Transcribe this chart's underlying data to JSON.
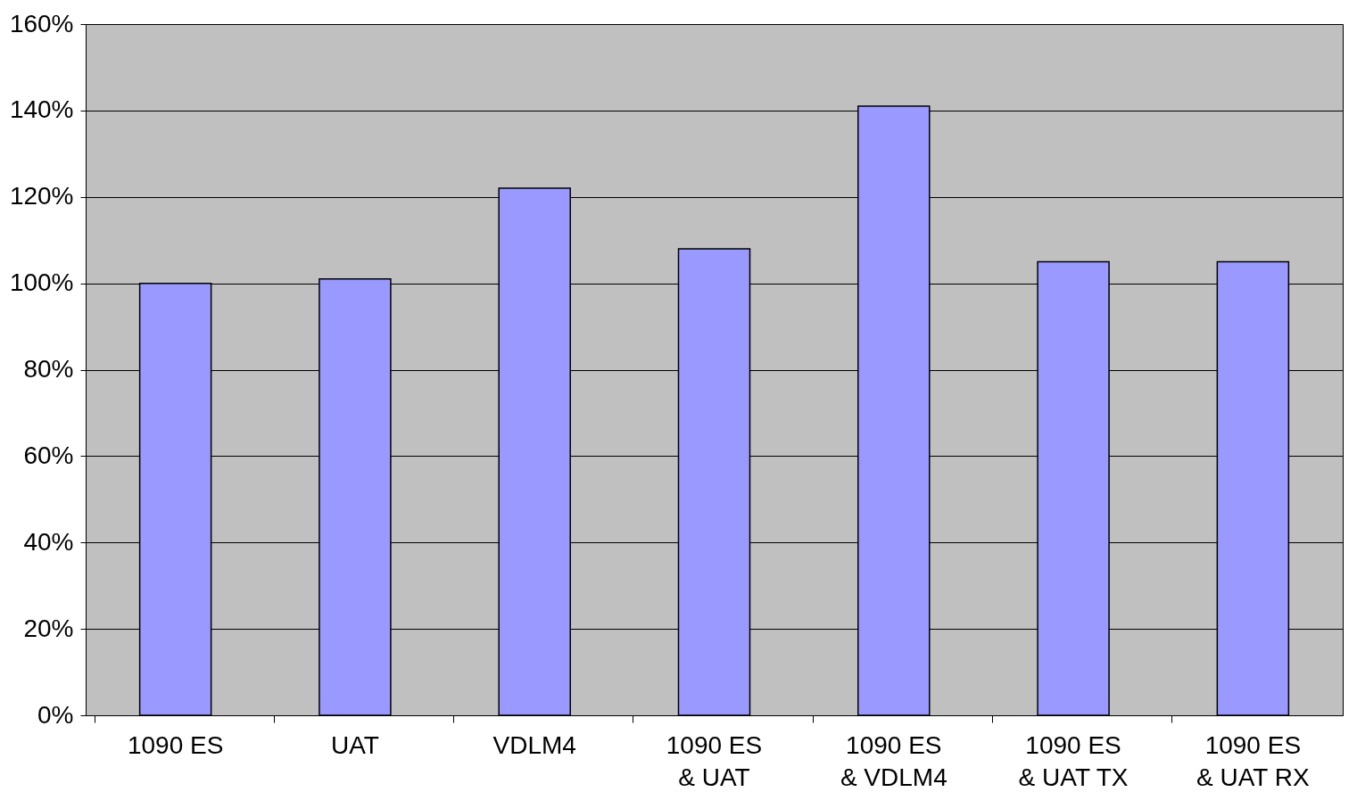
{
  "chart_data": {
    "type": "bar",
    "categories": [
      "1090 ES",
      "UAT",
      "VDLM4",
      "1090 ES\n& UAT",
      "1090 ES\n& VDLM4",
      "1090 ES\n& UAT TX",
      "1090 ES\n& UAT RX"
    ],
    "values": [
      100,
      101,
      122,
      108,
      141,
      105,
      105
    ],
    "color": "#9999ff",
    "ylim": [
      0,
      160
    ],
    "yticks": [
      {
        "value": 0,
        "label": "0%"
      },
      {
        "value": 20,
        "label": "20%"
      },
      {
        "value": 40,
        "label": "40%"
      },
      {
        "value": 60,
        "label": "60%"
      },
      {
        "value": 80,
        "label": "80%"
      },
      {
        "value": 100,
        "label": "100%"
      },
      {
        "value": 120,
        "label": "120%"
      },
      {
        "value": 140,
        "label": "140%"
      },
      {
        "value": 160,
        "label": "160%"
      }
    ],
    "grid": "y"
  }
}
